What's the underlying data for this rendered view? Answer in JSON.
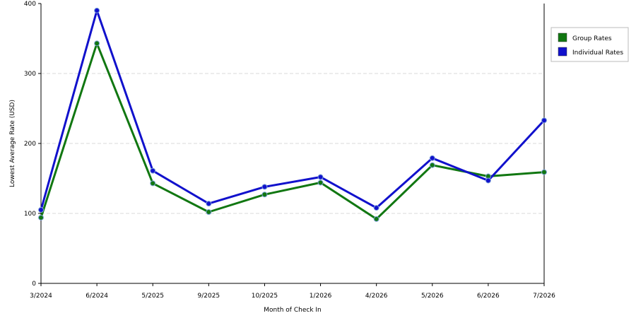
{
  "colors": {
    "background": "#ffffff",
    "axis": "#000000",
    "grid": "#d8d8d8",
    "legend_border": "#bbbbbb"
  },
  "chart_data": {
    "type": "line",
    "title": "",
    "xlabel": "Month of Check In",
    "ylabel": "Lowest Average Rate (USD)",
    "categories": [
      "3/2024",
      "6/2024",
      "5/2025",
      "9/2025",
      "10/2025",
      "1/2026",
      "4/2026",
      "5/2026",
      "6/2026",
      "7/2026"
    ],
    "ylim": [
      0,
      400
    ],
    "yticks": [
      0,
      100,
      200,
      300,
      400
    ],
    "grid": true,
    "legend_position": "top-right",
    "series": [
      {
        "name": "Group Rates",
        "color": "#117711",
        "values": [
          94,
          343,
          143,
          102,
          127,
          144,
          92,
          169,
          153,
          159
        ]
      },
      {
        "name": "Individual Rates",
        "color": "#1111cc",
        "values": [
          105,
          390,
          161,
          114,
          138,
          152,
          108,
          179,
          147,
          233
        ]
      }
    ]
  }
}
